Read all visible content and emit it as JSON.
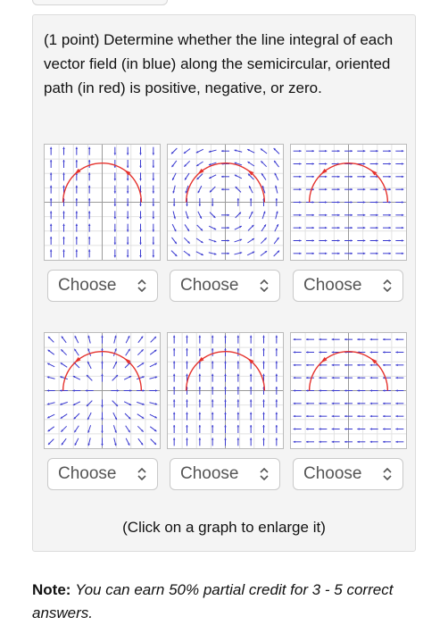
{
  "question": {
    "text": "(1 point) Determine whether the line integral of each vector field (in blue) along the semicircular, oriented path (in red) is positive, negative, or zero."
  },
  "graphs": [
    {
      "field": "vertical-left-up-right-down",
      "dropdown": {
        "selected": "Choose"
      }
    },
    {
      "field": "swirl",
      "dropdown": {
        "selected": "Choose"
      }
    },
    {
      "field": "horizontal-right",
      "dropdown": {
        "selected": "Choose"
      }
    },
    {
      "field": "radial-out",
      "dropdown": {
        "selected": "Choose"
      }
    },
    {
      "field": "vertical-up",
      "dropdown": {
        "selected": "Choose"
      }
    },
    {
      "field": "horizontal-left",
      "dropdown": {
        "selected": "Choose"
      }
    }
  ],
  "hint": "(Click on a graph to enlarge it)",
  "note": {
    "label": "Note:",
    "text": "You can earn 50% partial credit for 3 - 5 correct answers."
  },
  "colors": {
    "path": "#e5322d",
    "field": "#3a3ad0",
    "card_bg": "#f4f4f4"
  },
  "icons": {
    "dropdown": "chevron-up-down-icon"
  }
}
